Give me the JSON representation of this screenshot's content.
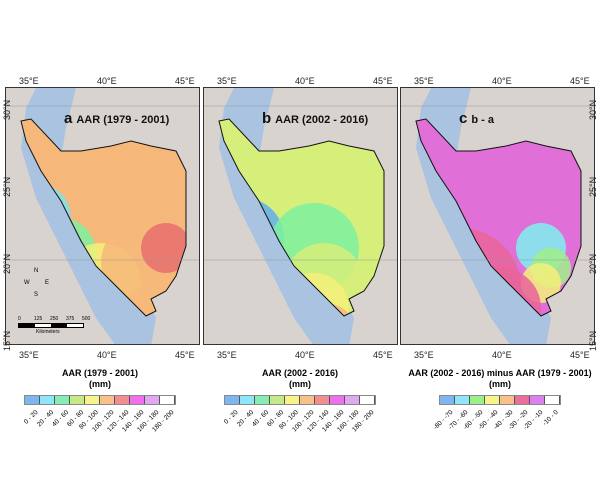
{
  "panels": [
    {
      "letter": "a",
      "title": "AAR (1979 - 2001)",
      "zones": [
        [
          "#7ee0f0",
          30,
          130,
          35
        ],
        [
          "#7ef0a0",
          55,
          165,
          35
        ],
        [
          "#f5f07a",
          95,
          195,
          40
        ],
        [
          "#f6b87a",
          140,
          175,
          45
        ],
        [
          "#e86f6f",
          160,
          160,
          25
        ],
        [
          "#f6b87a",
          150,
          230,
          35
        ],
        [
          "#e070e8",
          120,
          265,
          30
        ],
        [
          "#f080f0",
          150,
          280,
          20
        ]
      ],
      "base": "#f6b87a"
    },
    {
      "letter": "b",
      "title": "AAR (2002 - 2016)",
      "zones": [
        [
          "#60aef0",
          40,
          150,
          40
        ],
        [
          "#7ef0a0",
          110,
          160,
          45
        ],
        [
          "#d6ef7a",
          120,
          195,
          40
        ],
        [
          "#f5f07a",
          110,
          220,
          35
        ],
        [
          "#f6b87a",
          120,
          250,
          35
        ],
        [
          "#f08888",
          130,
          280,
          25
        ],
        [
          "#e070e8",
          145,
          300,
          15
        ]
      ],
      "base": "#d6ef7a"
    },
    {
      "letter": "c",
      "title": "b - a",
      "zones": [
        [
          "#e8649a",
          60,
          200,
          60
        ],
        [
          "#7ef0f0",
          140,
          160,
          25
        ],
        [
          "#a0f08a",
          150,
          180,
          20
        ],
        [
          "#f5f07a",
          140,
          195,
          20
        ],
        [
          "#e8649a",
          100,
          220,
          40
        ],
        [
          "#d8a8f0",
          90,
          240,
          20
        ],
        [
          "#f6b87a",
          135,
          275,
          20
        ],
        [
          "#e070e8",
          150,
          300,
          12
        ]
      ],
      "base": "#e070d8"
    }
  ],
  "axes": {
    "lon": [
      "35°E",
      "40°E",
      "45°E"
    ],
    "lat": [
      "30°N",
      "25°N",
      "20°N",
      "15°N"
    ]
  },
  "scalebar": {
    "ticks": [
      "0",
      "125",
      "250",
      "375",
      "500"
    ],
    "unit": "Kilometers"
  },
  "north_arrow": {
    "n": "N",
    "s": "S",
    "e": "E",
    "w": "W"
  },
  "legends": [
    {
      "title": "AAR (1979 - 2001)",
      "unit": "(mm)",
      "colors": [
        "#7fb6f0",
        "#8fe6f8",
        "#86eeb4",
        "#c8e88a",
        "#f5f58a",
        "#f8c08a",
        "#f09090",
        "#ee70ee",
        "#e0a8f0",
        "#ffffff"
      ],
      "labels": [
        "0 - 20",
        "20 - 40",
        "40 - 60",
        "60 - 80",
        "80 - 100",
        "100 - 120",
        "120 - 140",
        "140 - 160",
        "160 - 180",
        "180 - 200"
      ]
    },
    {
      "title": "AAR (2002 - 2016)",
      "unit": "(mm)",
      "colors": [
        "#7fb6f0",
        "#8fe6f8",
        "#86eeb4",
        "#c8e88a",
        "#f5f58a",
        "#f8c08a",
        "#f09090",
        "#ee70ee",
        "#e0a8f0",
        "#ffffff"
      ],
      "labels": [
        "0 - 20",
        "20 - 40",
        "40 - 60",
        "60 - 80",
        "80 - 100",
        "100 - 120",
        "120 - 140",
        "140 - 160",
        "160 - 180",
        "180 - 200"
      ]
    },
    {
      "title": "AAR (2002 - 2016) minus AAR (1979 - 2001)",
      "unit": "(mm)",
      "colors": [
        "#7fb6f0",
        "#8fe6f8",
        "#9cf08a",
        "#f5f58a",
        "#f8c08a",
        "#e8709a",
        "#dc80f0",
        "#ffffff"
      ],
      "labels": [
        "-80 - -70",
        "-70 - -60",
        "-60 - -50",
        "-50 - -40",
        "-40 - -30",
        "-30 - -20",
        "-20 - -10",
        "-10 - 0"
      ]
    }
  ]
}
